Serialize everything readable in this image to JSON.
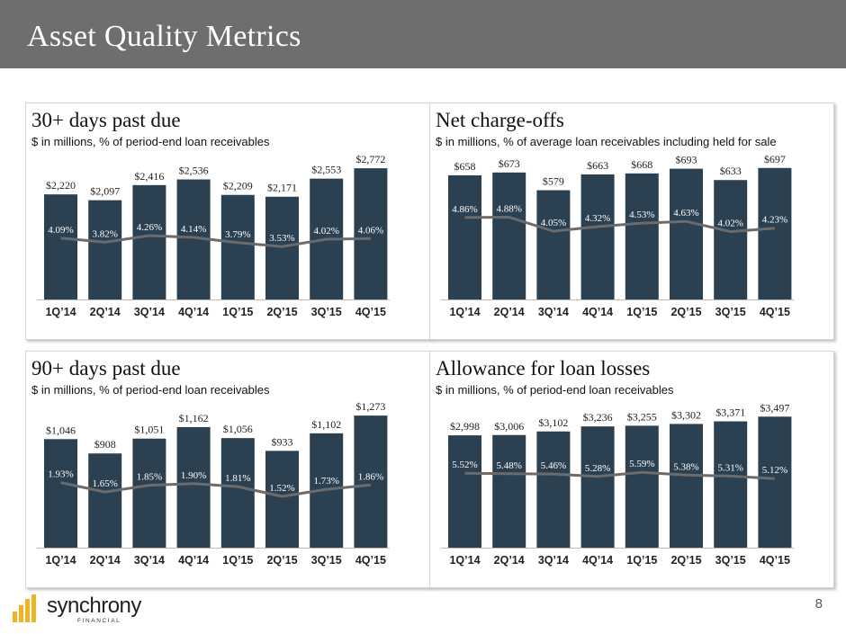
{
  "page": {
    "title": "Asset Quality Metrics",
    "page_number": "8",
    "logo": {
      "name": "synchrony",
      "sub": "FINANCIAL"
    }
  },
  "colors": {
    "header_bg": "#6e6e6e",
    "bar": "#2b4152",
    "trend_line": "#6b6b6b",
    "logo_accent": "#f0b323"
  },
  "chart_data": [
    {
      "type": "bar",
      "title": "30+ days past due",
      "subtitle": "$ in millions, % of period-end loan receivables",
      "categories": [
        "1Q’14",
        "2Q’14",
        "3Q’14",
        "4Q’14",
        "1Q’15",
        "2Q’15",
        "3Q’15",
        "4Q’15"
      ],
      "values": [
        2220,
        2097,
        2416,
        2536,
        2209,
        2171,
        2553,
        2772
      ],
      "value_labels": [
        "$2,220",
        "$2,097",
        "$2,416",
        "$2,536",
        "$2,209",
        "$2,171",
        "$2,553",
        "$2,772"
      ],
      "rates": [
        4.09,
        3.82,
        4.26,
        4.14,
        3.79,
        3.53,
        4.02,
        4.06
      ],
      "rate_labels": [
        "4.09%",
        "3.82%",
        "4.26%",
        "4.14%",
        "3.79%",
        "3.53%",
        "4.02%",
        "4.06%"
      ],
      "ylim": [
        0,
        2850
      ],
      "rate_lim": [
        0,
        9
      ],
      "legend": "none"
    },
    {
      "type": "bar",
      "title": "Net charge-offs",
      "subtitle": "$ in millions, % of average loan receivables including held for sale",
      "categories": [
        "1Q’14",
        "2Q’14",
        "3Q’14",
        "4Q’14",
        "1Q’15",
        "2Q’15",
        "3Q’15",
        "4Q’15"
      ],
      "values": [
        658,
        673,
        579,
        663,
        668,
        693,
        633,
        697
      ],
      "value_labels": [
        "$658",
        "$673",
        "$579",
        "$663",
        "$668",
        "$693",
        "$633",
        "$697"
      ],
      "rates": [
        4.86,
        4.88,
        4.05,
        4.32,
        4.53,
        4.63,
        4.02,
        4.23
      ],
      "rate_labels": [
        "4.86%",
        "4.88%",
        "4.05%",
        "4.32%",
        "4.53%",
        "4.63%",
        "4.02%",
        "4.23%"
      ],
      "ylim": [
        0,
        715
      ],
      "rate_lim": [
        0,
        8
      ],
      "legend": "none"
    },
    {
      "type": "bar",
      "title": "90+ days past due",
      "subtitle": "$ in millions, % of period-end loan receivables",
      "categories": [
        "1Q’14",
        "2Q’14",
        "3Q’14",
        "4Q’14",
        "1Q’15",
        "2Q’15",
        "3Q’15",
        "4Q’15"
      ],
      "values": [
        1046,
        908,
        1051,
        1162,
        1056,
        933,
        1102,
        1273
      ],
      "value_labels": [
        "$1,046",
        "$908",
        "$1,051",
        "$1,162",
        "$1,056",
        "$933",
        "$1,102",
        "$1,273"
      ],
      "rates": [
        1.93,
        1.65,
        1.85,
        1.9,
        1.81,
        1.52,
        1.73,
        1.86
      ],
      "rate_labels": [
        "1.93%",
        "1.65%",
        "1.85%",
        "1.90%",
        "1.81%",
        "1.52%",
        "1.73%",
        "1.86%"
      ],
      "ylim": [
        0,
        1300
      ],
      "rate_lim": [
        0,
        4
      ],
      "legend": "none"
    },
    {
      "type": "bar",
      "title": "Allowance for loan losses",
      "subtitle": "$ in millions, % of period-end loan receivables",
      "categories": [
        "1Q’14",
        "2Q’14",
        "3Q’14",
        "4Q’14",
        "1Q’15",
        "2Q’15",
        "3Q’15",
        "4Q’15"
      ],
      "values": [
        2998,
        3006,
        3102,
        3236,
        3255,
        3302,
        3371,
        3497
      ],
      "value_labels": [
        "$2,998",
        "$3,006",
        "$3,102",
        "$3,236",
        "$3,255",
        "$3,302",
        "$3,371",
        "$3,497"
      ],
      "rates": [
        5.52,
        5.48,
        5.46,
        5.28,
        5.59,
        5.38,
        5.31,
        5.12
      ],
      "rate_labels": [
        "5.52%",
        "5.48%",
        "5.46%",
        "5.28%",
        "5.59%",
        "5.38%",
        "5.31%",
        "5.12%"
      ],
      "ylim": [
        0,
        3600
      ],
      "rate_lim": [
        0,
        10
      ],
      "legend": "none"
    }
  ]
}
